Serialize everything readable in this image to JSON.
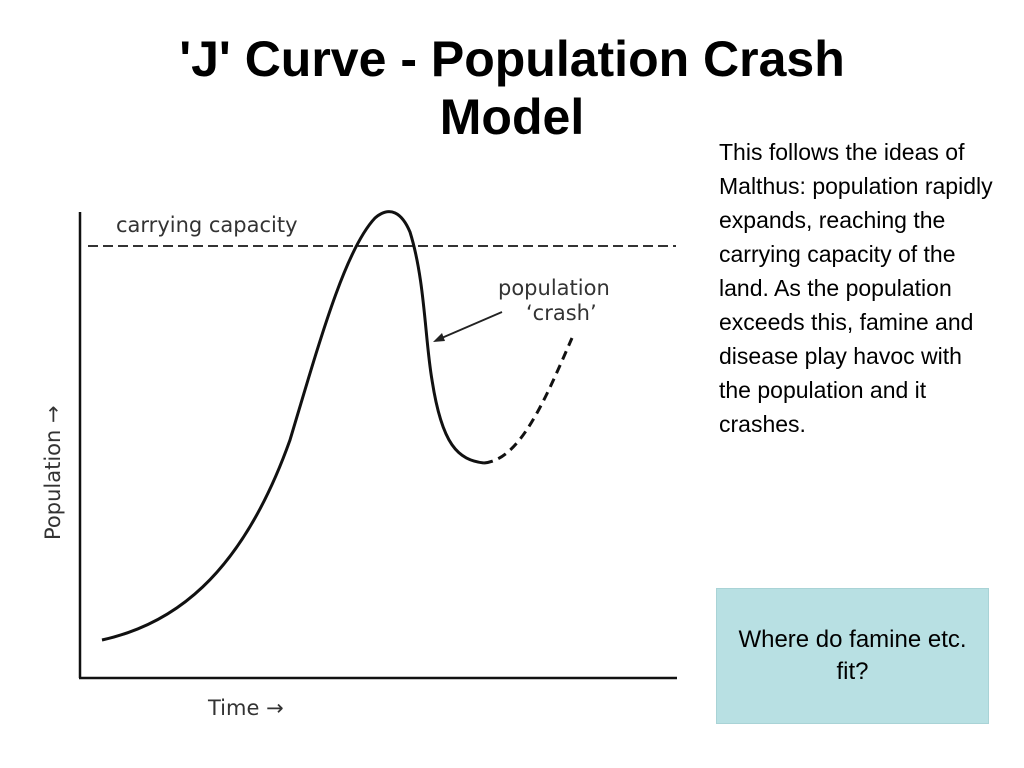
{
  "slide": {
    "title_line1": "'J' Curve - Population Crash",
    "title_line2": "Model",
    "body_text": "This follows the ideas of Malthus: population rapidly expands, reaching the carrying capacity of the land. As the population exceeds this, famine and disease play havoc with the population and it crashes.",
    "question": "Where do famine etc. fit?"
  },
  "diagram": {
    "capacity_label": "carrying capacity",
    "crash_label_line1": "population",
    "crash_label_line2": "‘crash’",
    "x_axis_label": "Time →",
    "y_axis_label": "Population →"
  },
  "colors": {
    "box_fill": "#b8e0e3",
    "line": "#111111"
  }
}
